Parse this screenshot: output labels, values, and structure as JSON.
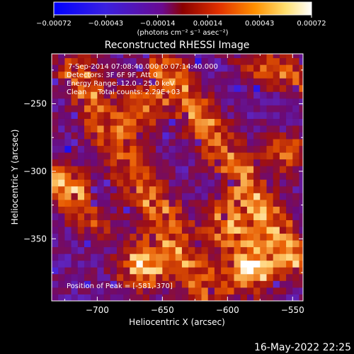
{
  "chart_data": {
    "type": "heatmap",
    "title": "Reconstructed RHESSI Image",
    "xlabel": "Heliocentric X (arcsec)",
    "ylabel": "Heliocentric Y (arcsec)",
    "xlim": [
      -735,
      -542
    ],
    "ylim": [
      -396,
      -213
    ],
    "xticks": [
      -700,
      -650,
      -600,
      -550
    ],
    "yticks": [
      -250,
      -300,
      -350
    ],
    "xtick_labels": [
      "−700",
      "−650",
      "−600",
      "−550"
    ],
    "ytick_labels": [
      "−250",
      "−300",
      "−350"
    ],
    "colorbar": {
      "range": [
        -0.00072,
        0.00072
      ],
      "ticks": [
        -0.00072,
        -0.00043,
        -0.00014,
        0.00014,
        0.00043,
        0.00072
      ],
      "tick_labels": [
        "−0.00072",
        "−0.00043",
        "−0.00014",
        "0.00014",
        "0.00043",
        "0.00072"
      ],
      "unit_label": "(photons cm⁻² s⁻¹ asec⁻²)"
    },
    "annotations": [
      "7-Sep-2014 07:08:40.000 to 07:14:40.000",
      "Detectors: 3F 6F 9F, Att 0",
      "Energy Range: 12.0 - 25.0 keV",
      "Clean     Total counts: 2.29E+03"
    ],
    "peak_label": "Position of Peak = [-581,-370]",
    "peak": [
      -581,
      -370
    ],
    "colormap": [
      "#0000ff",
      "#5b2bd0",
      "#6a0a78",
      "#a01010",
      "#e85a00",
      "#ffd070",
      "#ffffff"
    ],
    "grid": false
  },
  "footer": {
    "timestamp": "16-May-2022 22:25"
  }
}
